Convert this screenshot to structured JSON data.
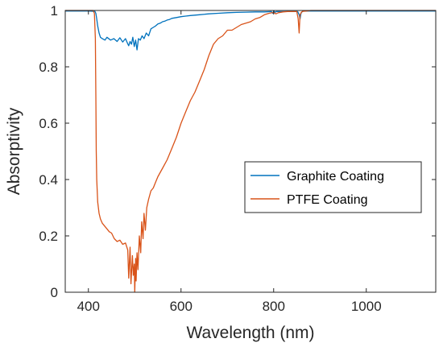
{
  "chart_data": {
    "type": "line",
    "xlabel": "Wavelength (nm)",
    "ylabel": "Absorptivity",
    "xlim": [
      350,
      1150
    ],
    "ylim": [
      0,
      1
    ],
    "xticks": [
      400,
      600,
      800,
      1000
    ],
    "yticks": [
      0,
      0.2,
      0.4,
      0.6,
      0.8,
      1
    ],
    "ytick_labels": [
      "0",
      "0.2",
      "0.4",
      "0.6",
      "0.8",
      "1"
    ],
    "grid": false,
    "legend_position": "right",
    "series": [
      {
        "name": "Graphite Coating",
        "color": "#0072BD",
        "x": [
          350,
          370,
          400,
          414,
          416,
          418,
          420,
          423,
          426,
          430,
          436,
          440,
          448,
          455,
          462,
          468,
          474,
          480,
          484,
          487,
          490,
          493,
          496,
          499,
          502,
          505,
          508,
          512,
          516,
          520,
          525,
          530,
          535,
          540,
          545,
          550,
          555,
          560,
          565,
          570,
          575,
          580,
          590,
          600,
          610,
          620,
          640,
          660,
          680,
          700,
          720,
          740,
          760,
          780,
          795,
          798,
          800,
          803,
          806,
          820,
          840,
          852,
          855,
          857,
          859,
          862,
          866,
          880,
          900,
          950,
          1000,
          1050,
          1100,
          1150
        ],
        "y": [
          0.998,
          0.998,
          0.998,
          0.997,
          0.99,
          0.97,
          0.945,
          0.92,
          0.905,
          0.9,
          0.895,
          0.905,
          0.895,
          0.9,
          0.89,
          0.903,
          0.888,
          0.9,
          0.885,
          0.875,
          0.89,
          0.88,
          0.905,
          0.872,
          0.895,
          0.86,
          0.9,
          0.895,
          0.91,
          0.9,
          0.92,
          0.91,
          0.935,
          0.94,
          0.945,
          0.952,
          0.955,
          0.96,
          0.962,
          0.966,
          0.968,
          0.972,
          0.975,
          0.978,
          0.98,
          0.982,
          0.985,
          0.988,
          0.99,
          0.992,
          0.993,
          0.994,
          0.995,
          0.995,
          0.996,
          0.99,
          0.998,
          0.994,
          0.996,
          0.996,
          0.996,
          0.996,
          0.985,
          0.97,
          0.99,
          0.997,
          0.998,
          0.998,
          0.998,
          0.998,
          0.998,
          0.998,
          0.998,
          0.998
        ]
      },
      {
        "name": "PTFE Coating",
        "color": "#D95319",
        "x": [
          350,
          370,
          390,
          405,
          410,
          413,
          415,
          416,
          417,
          418,
          420,
          423,
          426,
          430,
          435,
          440,
          445,
          450,
          456,
          462,
          468,
          474,
          480,
          485,
          487,
          490,
          492,
          495,
          497,
          499,
          500,
          502,
          503,
          505,
          507,
          510,
          513,
          515,
          518,
          520,
          523,
          526,
          530,
          535,
          540,
          545,
          550,
          560,
          570,
          580,
          590,
          600,
          610,
          620,
          630,
          640,
          650,
          660,
          670,
          680,
          690,
          700,
          710,
          720,
          730,
          740,
          750,
          760,
          770,
          780,
          790,
          800,
          805,
          810,
          820,
          830,
          840,
          850,
          853,
          855,
          857,
          860,
          863,
          870,
          875,
          880,
          900,
          950,
          1000,
          1050,
          1100,
          1150
        ],
        "y": [
          1.0,
          1.0,
          1.0,
          1.0,
          1.0,
          0.99,
          0.9,
          0.7,
          0.5,
          0.4,
          0.32,
          0.28,
          0.26,
          0.245,
          0.235,
          0.225,
          0.215,
          0.21,
          0.19,
          0.18,
          0.185,
          0.17,
          0.175,
          0.15,
          0.05,
          0.16,
          0.03,
          0.13,
          0.06,
          0.1,
          0.0,
          0.12,
          0.04,
          0.14,
          0.08,
          0.2,
          0.14,
          0.25,
          0.19,
          0.28,
          0.22,
          0.3,
          0.33,
          0.36,
          0.37,
          0.39,
          0.41,
          0.44,
          0.47,
          0.51,
          0.55,
          0.6,
          0.64,
          0.68,
          0.71,
          0.75,
          0.79,
          0.84,
          0.88,
          0.9,
          0.91,
          0.93,
          0.93,
          0.94,
          0.95,
          0.955,
          0.96,
          0.97,
          0.975,
          0.985,
          0.99,
          0.993,
          0.988,
          0.992,
          0.995,
          0.996,
          0.996,
          0.996,
          0.97,
          0.92,
          0.985,
          0.994,
          0.997,
          0.998,
          0.999,
          1.0,
          1.0,
          1.0,
          1.0,
          1.0,
          1.0,
          1.0
        ]
      }
    ]
  }
}
